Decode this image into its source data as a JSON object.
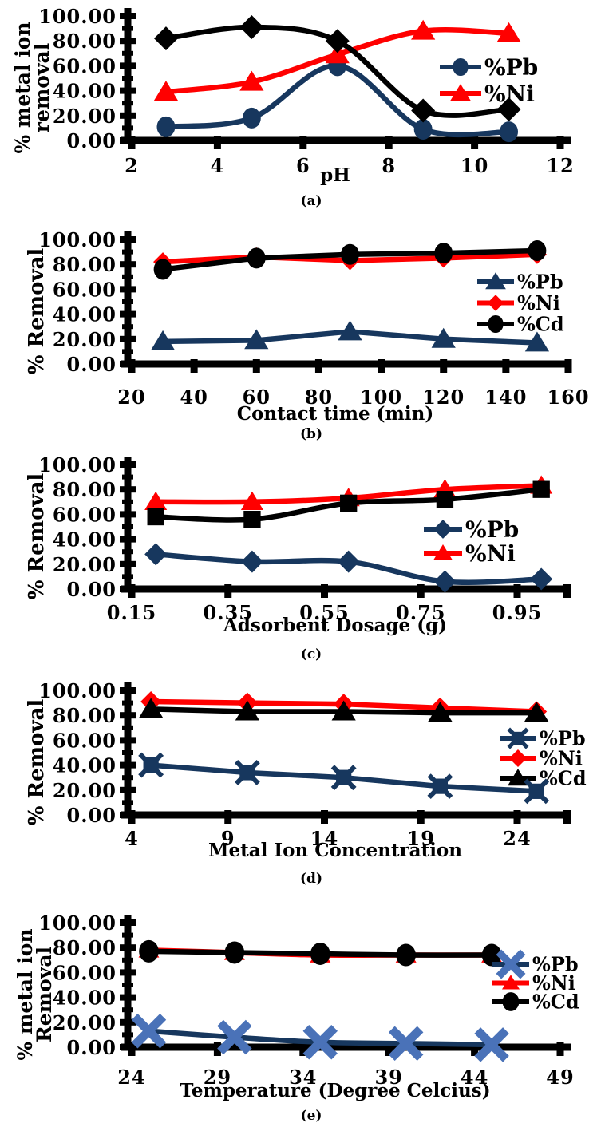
{
  "page": {
    "background": "#FFFFFF"
  },
  "colors": {
    "pb_navy": "#17375E",
    "ni_red": "#FF0000",
    "cd_black": "#000000",
    "pb_x_blue": "#4A72B8"
  },
  "chart_data": [
    {
      "id": "a",
      "type": "line",
      "caption": "(a)",
      "xlabel": "pH",
      "ylabel_lines": [
        "% metal ion",
        "removal"
      ],
      "ylim": [
        0,
        100
      ],
      "y_tick_labels": [
        "0.00",
        "20.00",
        "40.00",
        "60.00",
        "80.00",
        "100.00"
      ],
      "x_ticks": [
        {
          "v": 2,
          "label": "2"
        },
        {
          "v": 4,
          "label": "4"
        },
        {
          "v": 6,
          "label": "6"
        },
        {
          "v": 8,
          "label": "8"
        },
        {
          "v": 10,
          "label": "10"
        },
        {
          "v": 12,
          "label": "12"
        }
      ],
      "x": [
        2.8,
        4.8,
        6.8,
        8.8,
        10.8
      ],
      "series": [
        {
          "name": "%Pb",
          "in_legend": true,
          "color": "#17375E",
          "marker": "circle",
          "values": [
            11,
            18,
            60,
            9,
            7
          ]
        },
        {
          "name": "%Ni",
          "in_legend": true,
          "color": "#FF0000",
          "marker": "triangle",
          "values": [
            39,
            47,
            69,
            88,
            86
          ]
        },
        {
          "name": "",
          "in_legend": false,
          "color": "#000000",
          "marker": "diamond",
          "values": [
            82,
            91,
            80,
            24,
            25
          ]
        }
      ],
      "legend_position": "right"
    },
    {
      "id": "b",
      "type": "line",
      "caption": "(b)",
      "xlabel": "Contact time (min)",
      "ylabel_lines": [
        "% Removal"
      ],
      "ylim": [
        0,
        100
      ],
      "y_tick_labels": [
        "0.00",
        "20.00",
        "40.00",
        "60.00",
        "80.00",
        "100.00"
      ],
      "x_ticks": [
        {
          "v": 20,
          "label": "20"
        },
        {
          "v": 40,
          "label": "40"
        },
        {
          "v": 60,
          "label": "60"
        },
        {
          "v": 80,
          "label": "80"
        },
        {
          "v": 100,
          "label": "100"
        },
        {
          "v": 120,
          "label": "120"
        },
        {
          "v": 140,
          "label": "140"
        },
        {
          "v": 160,
          "label": "160"
        }
      ],
      "x": [
        30,
        60,
        90,
        120,
        150
      ],
      "series": [
        {
          "name": "%Pb",
          "in_legend": true,
          "color": "#17375E",
          "marker": "triangle",
          "values": [
            18,
            19,
            26,
            20,
            17
          ]
        },
        {
          "name": "%Ni",
          "in_legend": true,
          "color": "#FF0000",
          "marker": "diamond",
          "values": [
            82,
            86,
            83,
            85,
            88
          ]
        },
        {
          "name": "%Cd",
          "in_legend": true,
          "color": "#000000",
          "marker": "circle",
          "values": [
            76,
            85,
            88,
            89,
            91
          ]
        }
      ],
      "legend_position": "right"
    },
    {
      "id": "c",
      "type": "line",
      "caption": "(c)",
      "xlabel": "Adsorbent Dosage (g)",
      "ylabel_lines": [
        "% Removal"
      ],
      "ylim": [
        0,
        100
      ],
      "y_tick_labels": [
        "0.00",
        "20.00",
        "40.00",
        "60.00",
        "80.00",
        "100.00"
      ],
      "x_ticks": [
        {
          "v": 0.15,
          "label": "0.15"
        },
        {
          "v": 0.35,
          "label": "0.35"
        },
        {
          "v": 0.55,
          "label": "0.55"
        },
        {
          "v": 0.75,
          "label": "0.75"
        },
        {
          "v": 0.95,
          "label": "0.95"
        }
      ],
      "x": [
        0.2,
        0.4,
        0.6,
        0.8,
        1.0
      ],
      "series": [
        {
          "name": "%Pb",
          "in_legend": true,
          "color": "#17375E",
          "marker": "diamond",
          "values": [
            28,
            22,
            22,
            6,
            8
          ]
        },
        {
          "name": "%Ni",
          "in_legend": true,
          "color": "#FF0000",
          "marker": "triangle",
          "values": [
            70,
            70,
            73,
            80,
            83
          ]
        },
        {
          "name": "",
          "in_legend": false,
          "color": "#000000",
          "marker": "square",
          "values": [
            58,
            56,
            69,
            72,
            80
          ]
        }
      ],
      "legend_position": "right"
    },
    {
      "id": "d",
      "type": "line",
      "caption": "(d)",
      "xlabel": "Metal Ion Concentration",
      "ylabel_lines": [
        "% Removal"
      ],
      "ylim": [
        0,
        100
      ],
      "y_tick_labels": [
        "0.00",
        "20.00",
        "40.00",
        "60.00",
        "80.00",
        "100.00"
      ],
      "x_ticks": [
        {
          "v": 4,
          "label": "4"
        },
        {
          "v": 9,
          "label": "9"
        },
        {
          "v": 14,
          "label": "14"
        },
        {
          "v": 19,
          "label": "19"
        },
        {
          "v": 24,
          "label": "24"
        }
      ],
      "x": [
        5,
        10,
        15,
        20,
        25
      ],
      "series": [
        {
          "name": "%Pb",
          "in_legend": true,
          "color": "#17375E",
          "marker": "square-x",
          "values": [
            40,
            34,
            30,
            23,
            19
          ]
        },
        {
          "name": "%Ni",
          "in_legend": true,
          "color": "#FF0000",
          "marker": "diamond",
          "values": [
            91,
            90,
            89,
            86,
            83
          ]
        },
        {
          "name": "%Cd",
          "in_legend": true,
          "color": "#000000",
          "marker": "triangle",
          "values": [
            85,
            83,
            83,
            82,
            82
          ]
        }
      ],
      "legend_position": "right"
    },
    {
      "id": "e",
      "type": "line",
      "caption": "(e)",
      "xlabel": "Temperature (Degree Celcius)",
      "ylabel_lines": [
        "% metal ion",
        "Removal"
      ],
      "ylim": [
        0,
        100
      ],
      "y_tick_labels": [
        "0.00",
        "20.00",
        "40.00",
        "60.00",
        "80.00",
        "100.00"
      ],
      "x_ticks": [
        {
          "v": 24,
          "label": "24"
        },
        {
          "v": 29,
          "label": "29"
        },
        {
          "v": 34,
          "label": "34"
        },
        {
          "v": 39,
          "label": "39"
        },
        {
          "v": 44,
          "label": "44"
        },
        {
          "v": 49,
          "label": "49"
        }
      ],
      "x": [
        25,
        30,
        35,
        40,
        45
      ],
      "series": [
        {
          "name": "%Pb",
          "in_legend": true,
          "color": "#17375E",
          "marker": "x-cross",
          "marker_color": "#4A72B8",
          "values": [
            13,
            8,
            4,
            3,
            2
          ]
        },
        {
          "name": "%Ni",
          "in_legend": true,
          "color": "#FF0000",
          "marker": "triangle",
          "values": [
            78,
            76,
            74,
            74,
            74
          ]
        },
        {
          "name": "%Cd",
          "in_legend": true,
          "color": "#000000",
          "marker": "circle",
          "values": [
            77,
            76,
            75,
            74,
            74
          ]
        }
      ],
      "legend_position": "right"
    }
  ]
}
